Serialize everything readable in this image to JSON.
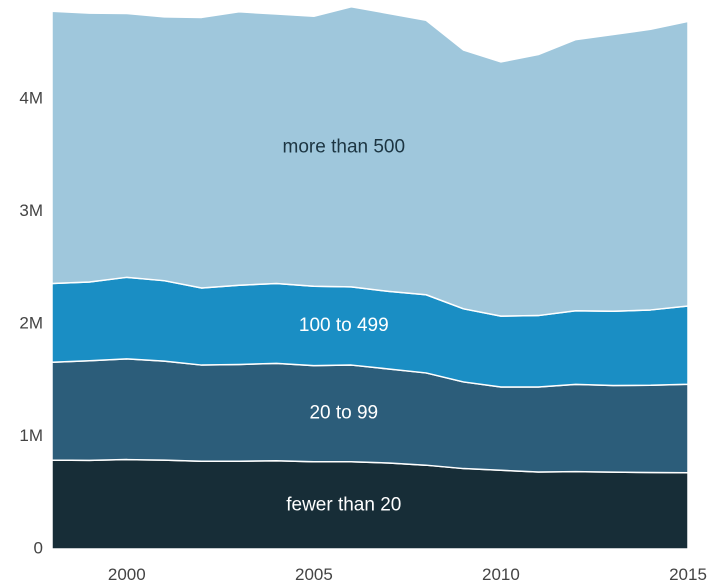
{
  "chart_data": {
    "type": "area",
    "stacked": true,
    "title": "",
    "xlabel": "",
    "ylabel": "",
    "x": [
      1998,
      1999,
      2000,
      2001,
      2002,
      2003,
      2004,
      2005,
      2006,
      2007,
      2008,
      2009,
      2010,
      2011,
      2012,
      2013,
      2014,
      2015
    ],
    "xlim": [
      1998,
      2015
    ],
    "ylim": [
      0,
      4800000
    ],
    "x_ticks": [
      {
        "value": 2000,
        "label": "2000"
      },
      {
        "value": 2005,
        "label": "2005"
      },
      {
        "value": 2010,
        "label": "2010"
      },
      {
        "value": 2015,
        "label": "2015"
      }
    ],
    "y_ticks": [
      {
        "value": 0,
        "label": "0"
      },
      {
        "value": 1000000,
        "label": "1M"
      },
      {
        "value": 2000000,
        "label": "2M"
      },
      {
        "value": 3000000,
        "label": "3M"
      },
      {
        "value": 4000000,
        "label": "4M"
      }
    ],
    "grid": false,
    "series": [
      {
        "name": "fewer than 20",
        "color": "#172d37",
        "label_color": "#ffffff",
        "label_x": 2005.8,
        "values": [
          790000,
          788000,
          795000,
          790000,
          780000,
          780000,
          785000,
          775000,
          775000,
          765000,
          745000,
          715000,
          700000,
          685000,
          688000,
          683000,
          680000,
          678000
        ]
      },
      {
        "name": "20 to 99",
        "color": "#2c5d7a",
        "label_color": "#ffffff",
        "label_x": 2005.8,
        "values": [
          870000,
          885000,
          895000,
          880000,
          855000,
          860000,
          865000,
          855000,
          860000,
          835000,
          820000,
          770000,
          740000,
          755000,
          775000,
          770000,
          775000,
          787000
        ]
      },
      {
        "name": "100 to 499",
        "color": "#1a8ec4",
        "label_color": "#ffffff",
        "label_x": 2005.8,
        "values": [
          700000,
          700000,
          725000,
          715000,
          685000,
          705000,
          710000,
          705000,
          695000,
          690000,
          695000,
          650000,
          630000,
          635000,
          655000,
          660000,
          670000,
          695000
        ]
      },
      {
        "name": "more than 500",
        "color": "#9fc7dc",
        "label_color": "#1c3542",
        "label_x": 2005.8,
        "values": [
          2420000,
          2390000,
          2345000,
          2345000,
          2405000,
          2430000,
          2395000,
          2400000,
          2490000,
          2470000,
          2440000,
          2300000,
          2260000,
          2320000,
          2410000,
          2460000,
          2495000,
          2530000
        ]
      }
    ]
  }
}
